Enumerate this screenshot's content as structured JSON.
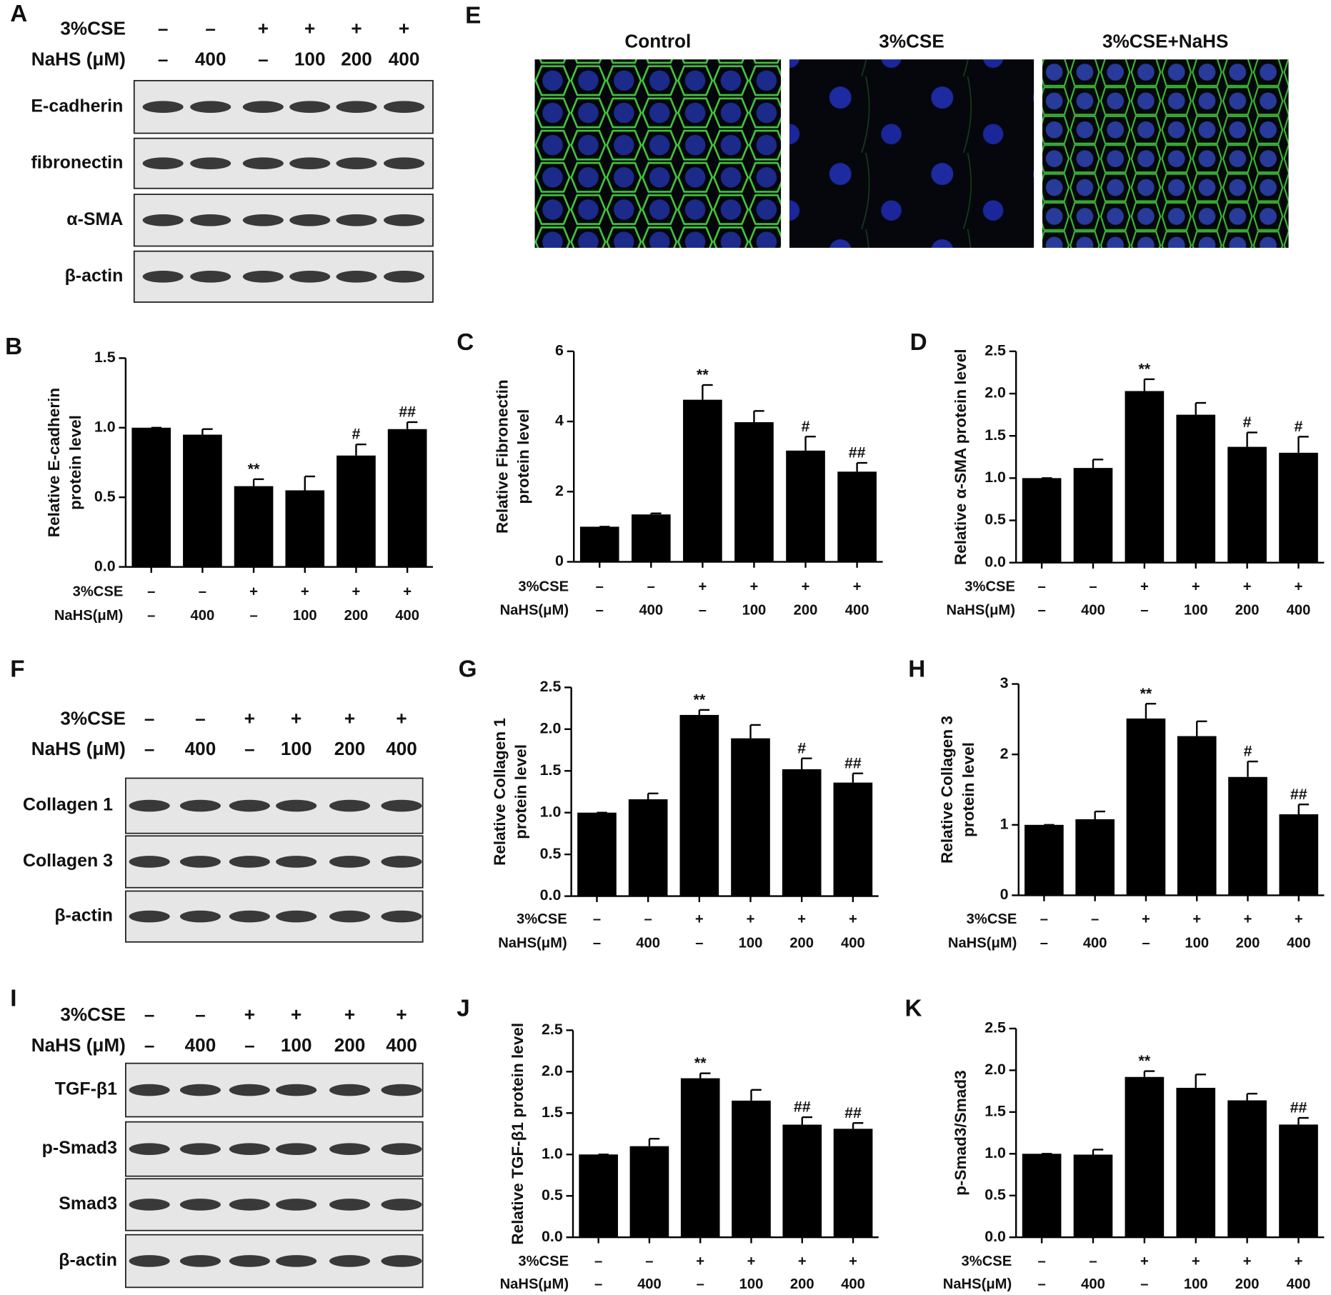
{
  "chart_data": [
    {
      "type": "bar",
      "panel": "B",
      "ylabel": [
        "Relative E-cadherin",
        "protein level"
      ],
      "ylim": [
        0,
        1.5
      ],
      "yticks": [
        {
          "value": 0,
          "label": "0.0"
        },
        {
          "value": 0.5,
          "label": "0.5"
        },
        {
          "value": 1,
          "label": "1.0"
        },
        {
          "value": 1.5,
          "label": "1.5"
        }
      ],
      "values": [
        1.0,
        0.95,
        0.58,
        0.55,
        0.8,
        0.99
      ],
      "errors": [
        0,
        0.04,
        0.05,
        0.1,
        0.08,
        0.05
      ],
      "annotations": [
        null,
        null,
        "**",
        null,
        "#",
        "##"
      ],
      "color": "#000000",
      "treatments": [
        {
          "label": "3%CSE",
          "values": [
            "–",
            "–",
            "+",
            "+",
            "+",
            "+"
          ]
        },
        {
          "label": "NaHS(μM)",
          "values": [
            "–",
            "400",
            "–",
            "100",
            "200",
            "400"
          ]
        }
      ]
    },
    {
      "type": "bar",
      "panel": "C",
      "ylabel": [
        "Relative Fibronectin",
        "protein level"
      ],
      "ylim": [
        0,
        6
      ],
      "yticks": [
        0,
        2,
        4,
        6
      ],
      "values": [
        1.0,
        1.35,
        4.62,
        3.98,
        3.17,
        2.57
      ],
      "errors": [
        0,
        0.03,
        0.42,
        0.32,
        0.4,
        0.25
      ],
      "annotations": [
        null,
        null,
        "**",
        null,
        "#",
        "##"
      ],
      "color": "#000000",
      "treatments": [
        {
          "label": "3%CSE",
          "values": [
            "–",
            "–",
            "+",
            "+",
            "+",
            "+"
          ]
        },
        {
          "label": "NaHS(μM)",
          "values": [
            "–",
            "400",
            "–",
            "100",
            "200",
            "400"
          ]
        }
      ]
    },
    {
      "type": "bar",
      "panel": "D",
      "ylabel": [
        "Relative α-SMA protein level"
      ],
      "ylim": [
        0,
        2.5
      ],
      "yticks": [
        {
          "value": 0,
          "label": "0.0"
        },
        {
          "value": 0.5,
          "label": "0.5"
        },
        {
          "value": 1,
          "label": "1.0"
        },
        {
          "value": 1.5,
          "label": "1.5"
        },
        {
          "value": 2,
          "label": "2.0"
        },
        {
          "value": 2.5,
          "label": "2.5"
        }
      ],
      "values": [
        1.0,
        1.12,
        2.03,
        1.75,
        1.37,
        1.3
      ],
      "errors": [
        0,
        0.1,
        0.14,
        0.14,
        0.17,
        0.19
      ],
      "annotations": [
        null,
        null,
        "**",
        null,
        "#",
        "#"
      ],
      "color": "#000000",
      "treatments": [
        {
          "label": "3%CSE",
          "values": [
            "–",
            "–",
            "+",
            "+",
            "+",
            "+"
          ]
        },
        {
          "label": "NaHS(μM)",
          "values": [
            "–",
            "400",
            "–",
            "100",
            "200",
            "400"
          ]
        }
      ]
    },
    {
      "type": "bar",
      "panel": "G",
      "ylabel": [
        "Relative Collagen 1",
        "protein level"
      ],
      "ylim": [
        0,
        2.5
      ],
      "yticks": [
        {
          "value": 0,
          "label": "0.0"
        },
        {
          "value": 0.5,
          "label": "0.5"
        },
        {
          "value": 1,
          "label": "1.0"
        },
        {
          "value": 1.5,
          "label": "1.5"
        },
        {
          "value": 2,
          "label": "2.0"
        },
        {
          "value": 2.5,
          "label": "2.5"
        }
      ],
      "values": [
        1.0,
        1.16,
        2.17,
        1.89,
        1.52,
        1.36
      ],
      "errors": [
        0,
        0.07,
        0.06,
        0.16,
        0.13,
        0.11
      ],
      "annotations": [
        null,
        null,
        "**",
        null,
        "#",
        "##"
      ],
      "color": "#000000",
      "treatments": [
        {
          "label": "3%CSE",
          "values": [
            "–",
            "–",
            "+",
            "+",
            "+",
            "+"
          ]
        },
        {
          "label": "NaHS(μM)",
          "values": [
            "–",
            "400",
            "–",
            "100",
            "200",
            "400"
          ]
        }
      ]
    },
    {
      "type": "bar",
      "panel": "H",
      "ylabel": [
        "Relative Collagen 3",
        "protein level"
      ],
      "ylim": [
        0,
        3
      ],
      "yticks": [
        0,
        1,
        2,
        3
      ],
      "values": [
        1.0,
        1.08,
        2.51,
        2.26,
        1.68,
        1.15
      ],
      "errors": [
        0,
        0.11,
        0.21,
        0.21,
        0.22,
        0.14
      ],
      "annotations": [
        null,
        null,
        "**",
        null,
        "#",
        "##"
      ],
      "color": "#000000",
      "treatments": [
        {
          "label": "3%CSE",
          "values": [
            "–",
            "–",
            "+",
            "+",
            "+",
            "+"
          ]
        },
        {
          "label": "NaHS(μM)",
          "values": [
            "–",
            "400",
            "–",
            "100",
            "200",
            "400"
          ]
        }
      ]
    },
    {
      "type": "bar",
      "panel": "J",
      "ylabel": [
        "Relative TGF-β1 protein level"
      ],
      "ylim": [
        0,
        2.5
      ],
      "yticks": [
        {
          "value": 0,
          "label": "0.0"
        },
        {
          "value": 0.5,
          "label": "0.5"
        },
        {
          "value": 1,
          "label": "1.0"
        },
        {
          "value": 1.5,
          "label": "1.5"
        },
        {
          "value": 2,
          "label": "2.0"
        },
        {
          "value": 2.5,
          "label": "2.5"
        }
      ],
      "values": [
        1.0,
        1.1,
        1.92,
        1.65,
        1.36,
        1.31
      ],
      "errors": [
        0,
        0.09,
        0.06,
        0.13,
        0.09,
        0.07
      ],
      "annotations": [
        null,
        null,
        "**",
        null,
        "##",
        "##"
      ],
      "color": "#000000",
      "treatments": [
        {
          "label": "3%CSE",
          "values": [
            "–",
            "–",
            "+",
            "+",
            "+",
            "+"
          ]
        },
        {
          "label": "NaHS(μM)",
          "values": [
            "–",
            "400",
            "–",
            "100",
            "200",
            "400"
          ]
        }
      ]
    },
    {
      "type": "bar",
      "panel": "K",
      "ylabel": [
        "p-Smad3/Smad3"
      ],
      "ylim": [
        0,
        2.5
      ],
      "yticks": [
        {
          "value": 0,
          "label": "0.0"
        },
        {
          "value": 0.5,
          "label": "0.5"
        },
        {
          "value": 1,
          "label": "1.0"
        },
        {
          "value": 1.5,
          "label": "1.5"
        },
        {
          "value": 2,
          "label": "2.0"
        },
        {
          "value": 2.5,
          "label": "2.5"
        }
      ],
      "values": [
        1.0,
        0.99,
        1.92,
        1.79,
        1.64,
        1.35
      ],
      "errors": [
        0,
        0.06,
        0.07,
        0.16,
        0.08,
        0.08
      ],
      "annotations": [
        null,
        null,
        "**",
        null,
        null,
        "##"
      ],
      "color": "#000000",
      "treatments": [
        {
          "label": "3%CSE",
          "values": [
            "–",
            "–",
            "+",
            "+",
            "+",
            "+"
          ]
        },
        {
          "label": "NaHS(μM)",
          "values": [
            "–",
            "400",
            "–",
            "100",
            "200",
            "400"
          ]
        }
      ]
    }
  ],
  "blots": [
    {
      "panel": "A",
      "treatments": [
        {
          "label": "3%CSE",
          "values": [
            "–",
            "–",
            "+",
            "+",
            "+",
            "+"
          ]
        },
        {
          "label": "NaHS (μM)",
          "values": [
            "–",
            "400",
            "–",
            "100",
            "200",
            "400"
          ]
        }
      ],
      "bands": [
        "E-cadherin",
        "fibronectin",
        "α-SMA",
        "β-actin"
      ]
    },
    {
      "panel": "F",
      "treatments": [
        {
          "label": "3%CSE",
          "values": [
            "–",
            "–",
            "+",
            "+",
            "+",
            "+"
          ]
        },
        {
          "label": "NaHS (μM)",
          "values": [
            "–",
            "400",
            "–",
            "100",
            "200",
            "400"
          ]
        }
      ],
      "bands": [
        "Collagen 1",
        "Collagen 3",
        "β-actin"
      ]
    },
    {
      "panel": "I",
      "treatments": [
        {
          "label": "3%CSE",
          "values": [
            "–",
            "–",
            "+",
            "+",
            "+",
            "+"
          ]
        },
        {
          "label": "NaHS (μM)",
          "values": [
            "–",
            "400",
            "–",
            "100",
            "200",
            "400"
          ]
        }
      ],
      "bands": [
        "TGF-β1",
        "p-Smad3",
        "Smad3",
        "β-actin"
      ]
    }
  ],
  "images": {
    "panel": "E",
    "titles": [
      "Control",
      "3%CSE",
      "3%CSE+NaHS"
    ]
  }
}
